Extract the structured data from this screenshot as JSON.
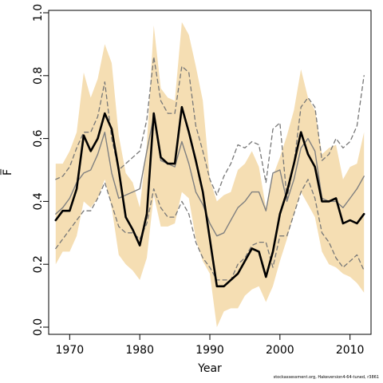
{
  "chart_data": {
    "type": "line",
    "xlabel": "Year",
    "ylabel": "F̅",
    "xlim": [
      1967,
      2013
    ],
    "ylim": [
      0,
      1.0
    ],
    "x_ticks": [
      1970,
      1980,
      1990,
      2000,
      2010
    ],
    "y_ticks": [
      0.0,
      0.2,
      0.4,
      0.6,
      0.8,
      1.0
    ],
    "band_color": "#f5deb3",
    "x": [
      1968,
      1969,
      1970,
      1971,
      1972,
      1973,
      1974,
      1975,
      1976,
      1977,
      1978,
      1979,
      1980,
      1981,
      1982,
      1983,
      1984,
      1985,
      1986,
      1987,
      1988,
      1989,
      1990,
      1991,
      1992,
      1993,
      1994,
      1995,
      1996,
      1997,
      1998,
      1999,
      2000,
      2001,
      2002,
      2003,
      2004,
      2005,
      2006,
      2007,
      2008,
      2009,
      2010,
      2011,
      2012
    ],
    "series": [
      {
        "role": "interval",
        "style": "band",
        "upper": [
          0.52,
          0.52,
          0.56,
          0.62,
          0.81,
          0.73,
          0.79,
          0.9,
          0.84,
          0.61,
          0.49,
          0.46,
          0.38,
          0.58,
          0.96,
          0.76,
          0.73,
          0.72,
          0.97,
          0.93,
          0.83,
          0.72,
          0.47,
          0.4,
          0.42,
          0.43,
          0.5,
          0.52,
          0.56,
          0.51,
          0.38,
          0.48,
          0.54,
          0.61,
          0.69,
          0.82,
          0.73,
          0.69,
          0.55,
          0.57,
          0.58,
          0.47,
          0.51,
          0.52,
          0.62
        ],
        "lower": [
          0.2,
          0.24,
          0.24,
          0.29,
          0.4,
          0.38,
          0.41,
          0.47,
          0.38,
          0.23,
          0.2,
          0.18,
          0.15,
          0.22,
          0.42,
          0.32,
          0.32,
          0.33,
          0.43,
          0.41,
          0.28,
          0.21,
          0.17,
          0.0,
          0.05,
          0.06,
          0.06,
          0.1,
          0.12,
          0.13,
          0.08,
          0.13,
          0.21,
          0.28,
          0.36,
          0.43,
          0.39,
          0.35,
          0.24,
          0.2,
          0.19,
          0.17,
          0.16,
          0.14,
          0.11
        ]
      },
      {
        "role": "upper-bound",
        "style": "dashed",
        "color": "#777777",
        "values": [
          0.47,
          0.48,
          0.51,
          0.57,
          0.62,
          0.62,
          0.67,
          0.78,
          0.6,
          0.5,
          0.52,
          0.54,
          0.56,
          0.66,
          0.86,
          0.72,
          0.68,
          0.68,
          0.83,
          0.81,
          0.64,
          0.56,
          0.47,
          0.42,
          0.48,
          0.52,
          0.58,
          0.57,
          0.59,
          0.58,
          0.46,
          0.63,
          0.65,
          0.41,
          0.52,
          0.7,
          0.73,
          0.7,
          0.53,
          0.55,
          0.6,
          0.57,
          0.59,
          0.64,
          0.8
        ]
      },
      {
        "role": "lower-bound",
        "style": "dashed",
        "color": "#777777",
        "values": [
          0.25,
          0.28,
          0.31,
          0.34,
          0.37,
          0.37,
          0.41,
          0.46,
          0.39,
          0.32,
          0.3,
          0.3,
          0.28,
          0.33,
          0.44,
          0.38,
          0.35,
          0.35,
          0.4,
          0.36,
          0.27,
          0.22,
          0.19,
          0.15,
          0.15,
          0.15,
          0.2,
          0.22,
          0.26,
          0.27,
          0.27,
          0.19,
          0.29,
          0.29,
          0.36,
          0.43,
          0.47,
          0.41,
          0.3,
          0.27,
          0.22,
          0.19,
          0.21,
          0.23,
          0.18
        ]
      },
      {
        "role": "median",
        "style": "solid",
        "color": "#808080",
        "values": [
          0.36,
          0.38,
          0.41,
          0.46,
          0.49,
          0.5,
          0.55,
          0.62,
          0.49,
          0.41,
          0.42,
          0.43,
          0.44,
          0.56,
          0.67,
          0.53,
          0.52,
          0.51,
          0.59,
          0.52,
          0.43,
          0.39,
          0.33,
          0.29,
          0.3,
          0.34,
          0.38,
          0.4,
          0.43,
          0.43,
          0.37,
          0.49,
          0.5,
          0.4,
          0.47,
          0.57,
          0.6,
          0.56,
          0.41,
          0.4,
          0.4,
          0.38,
          0.41,
          0.44,
          0.48
        ]
      },
      {
        "role": "estimate",
        "style": "solid-thick",
        "color": "#000000",
        "values": [
          0.34,
          0.37,
          0.37,
          0.44,
          0.61,
          0.56,
          0.6,
          0.68,
          0.63,
          0.5,
          0.35,
          0.31,
          0.26,
          0.36,
          0.68,
          0.54,
          0.52,
          0.52,
          0.7,
          0.62,
          0.53,
          0.43,
          0.28,
          0.13,
          0.13,
          0.15,
          0.17,
          0.21,
          0.25,
          0.24,
          0.16,
          0.24,
          0.36,
          0.43,
          0.52,
          0.62,
          0.55,
          0.51,
          0.4,
          0.4,
          0.41,
          0.33,
          0.34,
          0.33,
          0.36
        ]
      }
    ]
  },
  "credit": "stockassessment.org, Hakeversion4-64-tuned, r3861"
}
